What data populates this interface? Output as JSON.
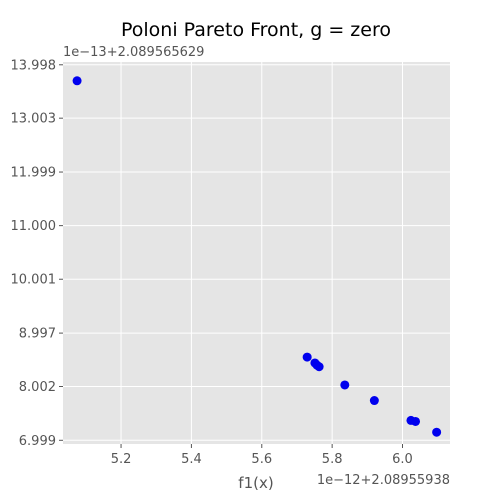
{
  "chart_data": {
    "type": "scatter",
    "title": "Poloni Pareto Front,  g = zero",
    "xlabel": "f1(x)",
    "ylabel": "",
    "x_offset_label": "1e−12+2.08955938",
    "y_offset_label": "1e−13+2.089565629",
    "xlim": [
      5.035,
      6.135
    ],
    "ylim": [
      6.93,
      14.05
    ],
    "x_ticks": [
      5.2,
      5.4,
      5.6,
      5.8,
      6.0
    ],
    "x_tick_labels": [
      "5.2",
      "5.4",
      "5.6",
      "5.8",
      "6.0"
    ],
    "y_ticks": [
      6.999,
      8.002,
      8.997,
      10.001,
      11.0,
      11.999,
      13.003,
      13.998
    ],
    "y_tick_labels": [
      "6.999",
      "8.002",
      "8.997",
      "10.001",
      "11.000",
      "11.999",
      "13.003",
      "13.998"
    ],
    "grid": true,
    "background_color": "#e5e5e5",
    "grid_color": "#ffffff",
    "marker_color": "#0000ee",
    "points": [
      {
        "x": 5.075,
        "y": 13.7
      },
      {
        "x": 5.729,
        "y": 8.55
      },
      {
        "x": 5.751,
        "y": 8.44
      },
      {
        "x": 5.757,
        "y": 8.4
      },
      {
        "x": 5.763,
        "y": 8.37
      },
      {
        "x": 5.836,
        "y": 8.03
      },
      {
        "x": 5.92,
        "y": 7.74
      },
      {
        "x": 6.024,
        "y": 7.37
      },
      {
        "x": 6.037,
        "y": 7.35
      },
      {
        "x": 6.097,
        "y": 7.15
      }
    ]
  }
}
